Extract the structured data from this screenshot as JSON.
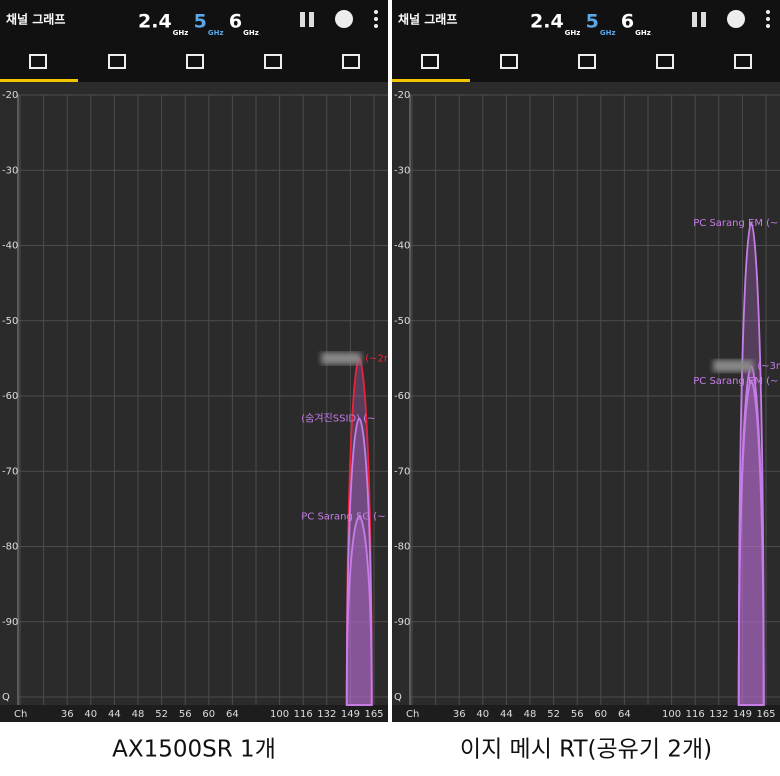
{
  "chart_data": [
    {
      "type": "channel",
      "app_title": "채널 그래프",
      "bands": [
        {
          "label": "2.4",
          "unit": "GHz"
        },
        {
          "label": "5",
          "unit": "GHz"
        },
        {
          "label": "6",
          "unit": "GHz"
        }
      ],
      "active_band": 1,
      "active_color": "#5aa6e6",
      "xlabel": "Ch",
      "categories": [
        null,
        null,
        "36",
        "40",
        "44",
        "48",
        "52",
        "56",
        "60",
        "64",
        null,
        "100",
        "116",
        "132",
        "149",
        "165"
      ],
      "ylim": [
        -100,
        -20
      ],
      "yticks": [
        -20,
        -30,
        -40,
        -50,
        -60,
        -70,
        -80,
        -90,
        {
          "value": -100,
          "label": "Q"
        }
      ],
      "grid": true,
      "series": [
        {
          "name": "(~2m",
          "color": "#e8243c",
          "value": -55,
          "channel": 155,
          "masked": true
        },
        {
          "name": "(숨겨진SSID) (~",
          "color": "#c77de8",
          "value": -63,
          "channel": 155,
          "masked": false
        },
        {
          "name": "PC Sarang 5G (~",
          "color": "#c77de8",
          "value": -76,
          "channel": 155,
          "masked": false
        }
      ],
      "caption": "AX1500SR 1개"
    },
    {
      "type": "channel",
      "app_title": "채널 그래프",
      "bands": [
        {
          "label": "2.4",
          "unit": "GHz"
        },
        {
          "label": "5",
          "unit": "GHz"
        },
        {
          "label": "6",
          "unit": "GHz"
        }
      ],
      "active_band": 1,
      "active_color": "#5aa6e6",
      "xlabel": "Ch",
      "categories": [
        null,
        null,
        "36",
        "40",
        "44",
        "48",
        "52",
        "56",
        "60",
        "64",
        null,
        "100",
        "116",
        "132",
        "149",
        "165"
      ],
      "ylim": [
        -100,
        -20
      ],
      "yticks": [
        -20,
        -30,
        -40,
        -50,
        -60,
        -70,
        -80,
        -90,
        {
          "value": -100,
          "label": "Q"
        }
      ],
      "grid": true,
      "series": [
        {
          "name": "PC Sarang EM (~",
          "color": "#c77de8",
          "value": -37,
          "channel": 155,
          "masked": false
        },
        {
          "name": "(~3m",
          "color": "#c77de8",
          "value": -56,
          "channel": 155,
          "masked": true
        },
        {
          "name": "PC Sarang EM (~",
          "color": "#c77de8",
          "value": -58,
          "channel": 155,
          "masked": false
        }
      ],
      "caption": "이지 메시 RT(공유기 2개)"
    }
  ]
}
